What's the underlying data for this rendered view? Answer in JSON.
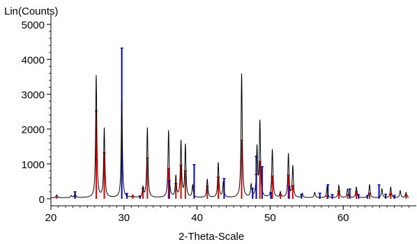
{
  "chart_data": {
    "type": "line",
    "title": "",
    "xlabel": "2-Theta-Scale",
    "ylabel": "Lin(Counts)",
    "xlim": [
      20,
      69
    ],
    "ylim": [
      -200,
      5500
    ],
    "x_ticks": [
      20,
      30,
      40,
      50,
      60
    ],
    "y_ticks": [
      0,
      1000,
      2000,
      3000,
      4000,
      5000
    ],
    "grid": false,
    "legend": "none",
    "colors": {
      "pattern": "#000000",
      "phase_a": "#e00000",
      "phase_b": "#0000cc"
    },
    "background": 30,
    "peaks": [
      {
        "x": 20.8,
        "y": 80
      },
      {
        "x": 22.8,
        "y": 60
      },
      {
        "x": 23.3,
        "y": 120
      },
      {
        "x": 26.2,
        "y": 3500
      },
      {
        "x": 27.3,
        "y": 1980
      },
      {
        "x": 29.7,
        "y": 2750
      },
      {
        "x": 31.2,
        "y": 60
      },
      {
        "x": 32.6,
        "y": 280
      },
      {
        "x": 33.2,
        "y": 2000
      },
      {
        "x": 36.1,
        "y": 1920
      },
      {
        "x": 37.1,
        "y": 600
      },
      {
        "x": 37.8,
        "y": 1600
      },
      {
        "x": 38.4,
        "y": 1500
      },
      {
        "x": 39.4,
        "y": 350
      },
      {
        "x": 41.4,
        "y": 530
      },
      {
        "x": 42.9,
        "y": 1000
      },
      {
        "x": 43.6,
        "y": 450
      },
      {
        "x": 46.1,
        "y": 3550
      },
      {
        "x": 47.4,
        "y": 350
      },
      {
        "x": 48.2,
        "y": 1400
      },
      {
        "x": 48.6,
        "y": 2150
      },
      {
        "x": 50.3,
        "y": 1380
      },
      {
        "x": 51.4,
        "y": 150
      },
      {
        "x": 52.5,
        "y": 1250
      },
      {
        "x": 53.1,
        "y": 900
      },
      {
        "x": 54.4,
        "y": 120
      },
      {
        "x": 56.1,
        "y": 150
      },
      {
        "x": 57.8,
        "y": 320
      },
      {
        "x": 59.4,
        "y": 350
      },
      {
        "x": 60.6,
        "y": 250
      },
      {
        "x": 61.8,
        "y": 300
      },
      {
        "x": 63.6,
        "y": 380
      },
      {
        "x": 65.3,
        "y": 250
      },
      {
        "x": 66.5,
        "y": 300
      },
      {
        "x": 67.8,
        "y": 200
      },
      {
        "x": 68.6,
        "y": 150
      }
    ],
    "series": [
      {
        "values": [
          [
            20.8,
            50
          ],
          [
            23.3,
            80
          ],
          [
            26.2,
            2520
          ],
          [
            27.3,
            1320
          ],
          [
            31.2,
            60
          ],
          [
            32.6,
            300
          ],
          [
            33.2,
            1170
          ],
          [
            36.1,
            870
          ],
          [
            37.1,
            440
          ],
          [
            37.8,
            960
          ],
          [
            38.4,
            800
          ],
          [
            41.4,
            360
          ],
          [
            42.9,
            620
          ],
          [
            46.1,
            1680
          ],
          [
            48.1,
            700
          ],
          [
            48.6,
            1070
          ],
          [
            50.3,
            650
          ],
          [
            51.4,
            120
          ],
          [
            52.5,
            680
          ],
          [
            53.1,
            380
          ],
          [
            57.8,
            80
          ],
          [
            59.4,
            220
          ],
          [
            60.6,
            120
          ],
          [
            61.8,
            200
          ],
          [
            63.6,
            160
          ],
          [
            66.5,
            150
          ],
          [
            68.6,
            100
          ]
        ]
      },
      {
        "values": [
          [
            23.3,
            200
          ],
          [
            29.7,
            4320
          ],
          [
            30.4,
            150
          ],
          [
            32.2,
            80
          ],
          [
            36.2,
            520
          ],
          [
            39.6,
            980
          ],
          [
            43.7,
            580
          ],
          [
            47.6,
            300
          ],
          [
            48.1,
            1220
          ],
          [
            48.9,
            920
          ],
          [
            50.1,
            180
          ],
          [
            52.6,
            350
          ],
          [
            54.3,
            130
          ],
          [
            56.8,
            160
          ],
          [
            57.9,
            400
          ],
          [
            58.5,
            120
          ],
          [
            60.9,
            280
          ],
          [
            62.1,
            120
          ],
          [
            63.3,
            90
          ],
          [
            64.9,
            400
          ],
          [
            65.8,
            130
          ],
          [
            67.0,
            100
          ]
        ]
      }
    ]
  }
}
